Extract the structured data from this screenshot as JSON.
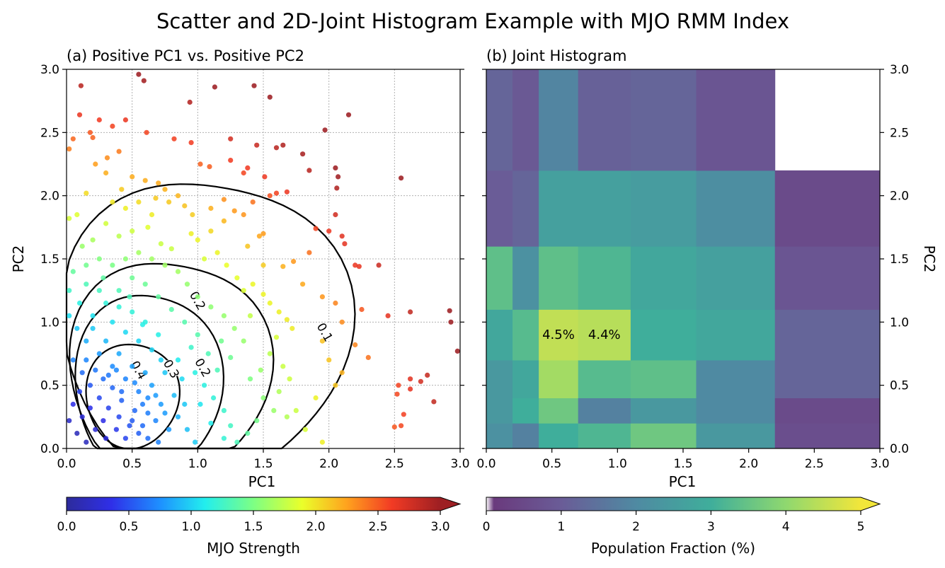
{
  "suptitle": "Scatter and 2D-Joint Histogram Example with MJO RMM Index",
  "chart_data": [
    {
      "type": "scatter",
      "title": "(a) Positive PC1 vs. Positive PC2",
      "xlabel": "PC1",
      "ylabel": "PC2",
      "xlim": [
        0,
        3
      ],
      "ylim": [
        0,
        3
      ],
      "xticks": [
        "0.0",
        "0.5",
        "1.0",
        "1.5",
        "2.0",
        "2.5",
        "3.0"
      ],
      "yticks": [
        "0.0",
        "0.5",
        "1.0",
        "1.5",
        "2.0",
        "2.5",
        "3.0"
      ],
      "grid": true,
      "color_by": "MJO Strength",
      "colormap": "jet",
      "contour_levels": [
        "0.1",
        "0.2",
        "0.3",
        "0.4"
      ],
      "points": [
        [
          0.11,
          2.87
        ],
        [
          0.55,
          2.96
        ],
        [
          0.59,
          2.91
        ],
        [
          0.94,
          2.74
        ],
        [
          1.13,
          2.86
        ],
        [
          1.43,
          2.87
        ],
        [
          1.55,
          2.78
        ],
        [
          2.15,
          2.64
        ],
        [
          2.55,
          2.14
        ],
        [
          0.1,
          2.64
        ],
        [
          0.18,
          2.5
        ],
        [
          0.25,
          2.6
        ],
        [
          0.35,
          2.55
        ],
        [
          0.45,
          2.6
        ],
        [
          0.61,
          2.5
        ],
        [
          0.05,
          2.45
        ],
        [
          0.02,
          2.37
        ],
        [
          0.2,
          2.46
        ],
        [
          0.4,
          2.35
        ],
        [
          0.31,
          2.3
        ],
        [
          0.82,
          2.45
        ],
        [
          0.95,
          2.42
        ],
        [
          1.25,
          2.45
        ],
        [
          1.45,
          2.4
        ],
        [
          1.6,
          2.38
        ],
        [
          1.65,
          2.4
        ],
        [
          1.8,
          2.33
        ],
        [
          1.97,
          2.52
        ],
        [
          1.85,
          2.2
        ],
        [
          2.05,
          2.22
        ],
        [
          2.07,
          2.15
        ],
        [
          2.06,
          2.06
        ],
        [
          1.51,
          2.15
        ],
        [
          1.38,
          2.22
        ],
        [
          1.35,
          2.18
        ],
        [
          1.25,
          2.28
        ],
        [
          1.09,
          2.23
        ],
        [
          1.02,
          2.25
        ],
        [
          1.6,
          2.02
        ],
        [
          1.55,
          2.0
        ],
        [
          1.68,
          2.03
        ],
        [
          1.42,
          1.95
        ],
        [
          1.35,
          1.85
        ],
        [
          1.2,
          1.97
        ],
        [
          1.28,
          1.88
        ],
        [
          1.5,
          1.7
        ],
        [
          1.47,
          1.68
        ],
        [
          2.05,
          1.85
        ],
        [
          1.9,
          1.74
        ],
        [
          2.1,
          1.68
        ],
        [
          2.12,
          1.62
        ],
        [
          2.0,
          1.72
        ],
        [
          2.2,
          1.45
        ],
        [
          2.23,
          1.44
        ],
        [
          2.38,
          1.45
        ],
        [
          2.25,
          1.1
        ],
        [
          2.45,
          1.05
        ],
        [
          2.62,
          1.08
        ],
        [
          2.92,
          1.09
        ],
        [
          2.93,
          1.0
        ],
        [
          2.98,
          0.77
        ],
        [
          2.2,
          0.82
        ],
        [
          2.3,
          0.72
        ],
        [
          2.52,
          0.43
        ],
        [
          2.53,
          0.5
        ],
        [
          2.62,
          0.55
        ],
        [
          2.62,
          0.47
        ],
        [
          2.75,
          0.58
        ],
        [
          2.7,
          0.53
        ],
        [
          2.8,
          0.37
        ],
        [
          2.57,
          0.27
        ],
        [
          2.5,
          0.17
        ],
        [
          2.55,
          0.18
        ],
        [
          1.85,
          1.55
        ],
        [
          1.73,
          1.48
        ],
        [
          1.65,
          1.44
        ],
        [
          1.8,
          1.3
        ],
        [
          1.95,
          1.2
        ],
        [
          2.05,
          1.15
        ],
        [
          2.1,
          1.0
        ],
        [
          1.95,
          0.85
        ],
        [
          2.0,
          0.7
        ],
        [
          2.1,
          0.6
        ],
        [
          2.05,
          0.5
        ],
        [
          1.9,
          0.4
        ],
        [
          1.75,
          0.3
        ],
        [
          1.68,
          0.25
        ],
        [
          1.82,
          0.15
        ],
        [
          1.95,
          0.05
        ],
        [
          0.22,
          2.25
        ],
        [
          0.3,
          2.18
        ],
        [
          0.42,
          2.05
        ],
        [
          0.5,
          2.15
        ],
        [
          0.6,
          2.12
        ],
        [
          0.7,
          2.1
        ],
        [
          0.75,
          2.05
        ],
        [
          0.85,
          2.0
        ],
        [
          0.9,
          1.92
        ],
        [
          0.55,
          1.95
        ],
        [
          0.65,
          1.85
        ],
        [
          0.45,
          1.9
        ],
        [
          0.35,
          1.95
        ],
        [
          0.15,
          2.02
        ],
        [
          0.08,
          1.85
        ],
        [
          0.02,
          1.82
        ],
        [
          0.3,
          1.78
        ],
        [
          0.2,
          1.65
        ],
        [
          0.5,
          1.72
        ],
        [
          0.62,
          1.75
        ],
        [
          0.72,
          1.62
        ],
        [
          0.8,
          1.58
        ],
        [
          0.95,
          1.7
        ],
        [
          1.0,
          1.65
        ],
        [
          1.1,
          1.72
        ],
        [
          1.05,
          1.5
        ],
        [
          1.15,
          1.55
        ],
        [
          1.22,
          1.45
        ],
        [
          1.3,
          1.35
        ],
        [
          1.35,
          1.25
        ],
        [
          1.42,
          1.3
        ],
        [
          1.5,
          1.22
        ],
        [
          1.55,
          1.15
        ],
        [
          1.62,
          1.08
        ],
        [
          1.68,
          1.02
        ],
        [
          1.72,
          0.95
        ],
        [
          1.6,
          0.88
        ],
        [
          1.55,
          0.75
        ],
        [
          1.65,
          0.65
        ],
        [
          1.7,
          0.55
        ],
        [
          1.62,
          0.45
        ],
        [
          1.5,
          0.4
        ],
        [
          1.58,
          0.3
        ],
        [
          1.45,
          0.22
        ],
        [
          1.38,
          0.12
        ],
        [
          1.3,
          0.05
        ],
        [
          1.25,
          0.18
        ],
        [
          1.2,
          0.3
        ],
        [
          1.12,
          0.4
        ],
        [
          1.05,
          0.5
        ],
        [
          1.15,
          0.62
        ],
        [
          1.25,
          0.72
        ],
        [
          1.35,
          0.85
        ],
        [
          1.28,
          0.95
        ],
        [
          1.2,
          1.05
        ],
        [
          1.1,
          1.12
        ],
        [
          1.0,
          1.2
        ],
        [
          0.92,
          1.3
        ],
        [
          0.85,
          1.4
        ],
        [
          0.75,
          1.45
        ],
        [
          0.65,
          1.5
        ],
        [
          0.55,
          1.55
        ],
        [
          0.45,
          1.5
        ],
        [
          0.35,
          1.45
        ],
        [
          0.25,
          1.5
        ],
        [
          0.15,
          1.45
        ],
        [
          0.05,
          1.4
        ],
        [
          0.02,
          1.25
        ],
        [
          0.1,
          1.15
        ],
        [
          0.2,
          1.05
        ],
        [
          0.3,
          1.15
        ],
        [
          0.4,
          1.25
        ],
        [
          0.5,
          1.35
        ],
        [
          0.6,
          1.3
        ],
        [
          0.7,
          1.2
        ],
        [
          0.8,
          1.1
        ],
        [
          0.9,
          1.0
        ],
        [
          1.0,
          0.9
        ],
        [
          0.95,
          0.8
        ],
        [
          0.85,
          0.7
        ],
        [
          0.75,
          0.6
        ],
        [
          0.65,
          0.5
        ],
        [
          0.55,
          0.45
        ],
        [
          0.45,
          0.55
        ],
        [
          0.35,
          0.65
        ],
        [
          0.25,
          0.75
        ],
        [
          0.15,
          0.85
        ],
        [
          0.08,
          0.95
        ],
        [
          0.02,
          1.05
        ],
        [
          0.05,
          0.7
        ],
        [
          0.12,
          0.6
        ],
        [
          0.18,
          0.5
        ],
        [
          0.25,
          0.4
        ],
        [
          0.32,
          0.32
        ],
        [
          0.4,
          0.25
        ],
        [
          0.48,
          0.18
        ],
        [
          0.55,
          0.12
        ],
        [
          0.62,
          0.08
        ],
        [
          0.7,
          0.05
        ],
        [
          0.78,
          0.15
        ],
        [
          0.85,
          0.25
        ],
        [
          0.9,
          0.35
        ],
        [
          0.82,
          0.42
        ],
        [
          0.72,
          0.35
        ],
        [
          0.62,
          0.28
        ],
        [
          0.52,
          0.3
        ],
        [
          0.42,
          0.38
        ],
        [
          0.35,
          0.48
        ],
        [
          0.28,
          0.55
        ],
        [
          0.22,
          0.62
        ],
        [
          0.15,
          0.7
        ],
        [
          0.1,
          0.45
        ],
        [
          0.05,
          0.35
        ],
        [
          0.02,
          0.22
        ],
        [
          0.08,
          0.12
        ],
        [
          0.15,
          0.05
        ],
        [
          0.22,
          0.15
        ],
        [
          0.3,
          0.08
        ],
        [
          0.38,
          0.15
        ],
        [
          0.45,
          0.08
        ],
        [
          0.5,
          0.22
        ],
        [
          0.58,
          0.35
        ],
        [
          0.68,
          0.42
        ],
        [
          0.6,
          0.6
        ],
        [
          0.5,
          0.65
        ],
        [
          0.4,
          0.75
        ],
        [
          0.3,
          0.85
        ],
        [
          0.2,
          0.95
        ],
        [
          0.35,
          1.0
        ],
        [
          0.45,
          0.92
        ],
        [
          0.55,
          0.85
        ],
        [
          0.65,
          0.78
        ],
        [
          0.7,
          0.9
        ],
        [
          0.6,
          1.0
        ],
        [
          0.5,
          1.08
        ],
        [
          0.4,
          1.12
        ],
        [
          0.25,
          1.25
        ],
        [
          0.15,
          1.3
        ],
        [
          0.98,
          0.6
        ],
        [
          1.08,
          0.75
        ],
        [
          1.18,
          0.85
        ],
        [
          1.02,
          0.35
        ],
        [
          0.92,
          0.15
        ],
        [
          1.1,
          0.2
        ],
        [
          1.2,
          0.08
        ],
        [
          0.98,
          0.05
        ],
        [
          1.4,
          0.55
        ],
        [
          1.48,
          0.62
        ],
        [
          1.4,
          1.05
        ],
        [
          1.5,
          1.45
        ],
        [
          1.38,
          1.6
        ],
        [
          1.2,
          1.8
        ],
        [
          1.1,
          1.9
        ],
        [
          0.96,
          1.85
        ],
        [
          0.78,
          1.95
        ],
        [
          0.68,
          1.98
        ],
        [
          0.4,
          1.68
        ],
        [
          0.12,
          1.6
        ],
        [
          0.28,
          1.35
        ],
        [
          0.48,
          1.2
        ],
        [
          0.58,
          0.98
        ],
        [
          0.72,
          0.7
        ],
        [
          0.88,
          0.55
        ],
        [
          0.32,
          0.58
        ],
        [
          0.42,
          0.45
        ],
        [
          0.18,
          0.32
        ],
        [
          0.28,
          0.22
        ],
        [
          0.12,
          0.25
        ],
        [
          0.58,
          0.18
        ],
        [
          0.68,
          0.22
        ],
        [
          0.75,
          0.28
        ],
        [
          0.52,
          0.52
        ],
        [
          0.38,
          0.62
        ],
        [
          0.62,
          0.4
        ]
      ]
    },
    {
      "type": "heatmap",
      "title": "(b) Joint Histogram",
      "xlabel": "PC1",
      "ylabel": "PC2",
      "xlim": [
        0,
        3
      ],
      "ylim": [
        0,
        3
      ],
      "xticks": [
        "0.0",
        "0.5",
        "1.0",
        "1.5",
        "2.0",
        "2.5",
        "3.0"
      ],
      "yticks": [
        "0.0",
        "0.5",
        "1.0",
        "1.5",
        "2.0",
        "2.5",
        "3.0"
      ],
      "colormap": "viridis",
      "x_edges": [
        0,
        0.2,
        0.4,
        0.7,
        1.1,
        1.6,
        2.2,
        3.0
      ],
      "y_edges": [
        0,
        0.2,
        0.4,
        0.7,
        1.1,
        1.6,
        2.2,
        3.0
      ],
      "values": [
        [
          2.2,
          1.8,
          3.0,
          3.2,
          3.6,
          2.4,
          0.6
        ],
        [
          2.4,
          3.0,
          3.6,
          1.8,
          2.4,
          2.0,
          0.5
        ],
        [
          2.4,
          2.8,
          4.2,
          3.3,
          3.4,
          2.0,
          1.2
        ],
        [
          2.8,
          3.3,
          4.5,
          4.4,
          3.0,
          2.8,
          1.2
        ],
        [
          3.4,
          2.2,
          3.4,
          3.2,
          2.8,
          2.6,
          0.8
        ],
        [
          1.0,
          1.2,
          2.6,
          2.6,
          2.5,
          2.1,
          0.5
        ],
        [
          1.2,
          0.9,
          1.9,
          1.1,
          1.2,
          0.8,
          null
        ]
      ],
      "annotations": [
        {
          "x": 0.55,
          "y": 0.9,
          "text": "4.5%"
        },
        {
          "x": 0.9,
          "y": 0.9,
          "text": "4.4%"
        }
      ]
    }
  ],
  "colorbars": [
    {
      "label": "MJO Strength",
      "ticks": [
        "0.0",
        "0.5",
        "1.0",
        "1.5",
        "2.0",
        "2.5",
        "3.0"
      ],
      "extend": "max"
    },
    {
      "label": "Population Fraction (%)",
      "ticks": [
        "0",
        "1",
        "2",
        "3",
        "4",
        "5"
      ],
      "extend": "max"
    }
  ]
}
